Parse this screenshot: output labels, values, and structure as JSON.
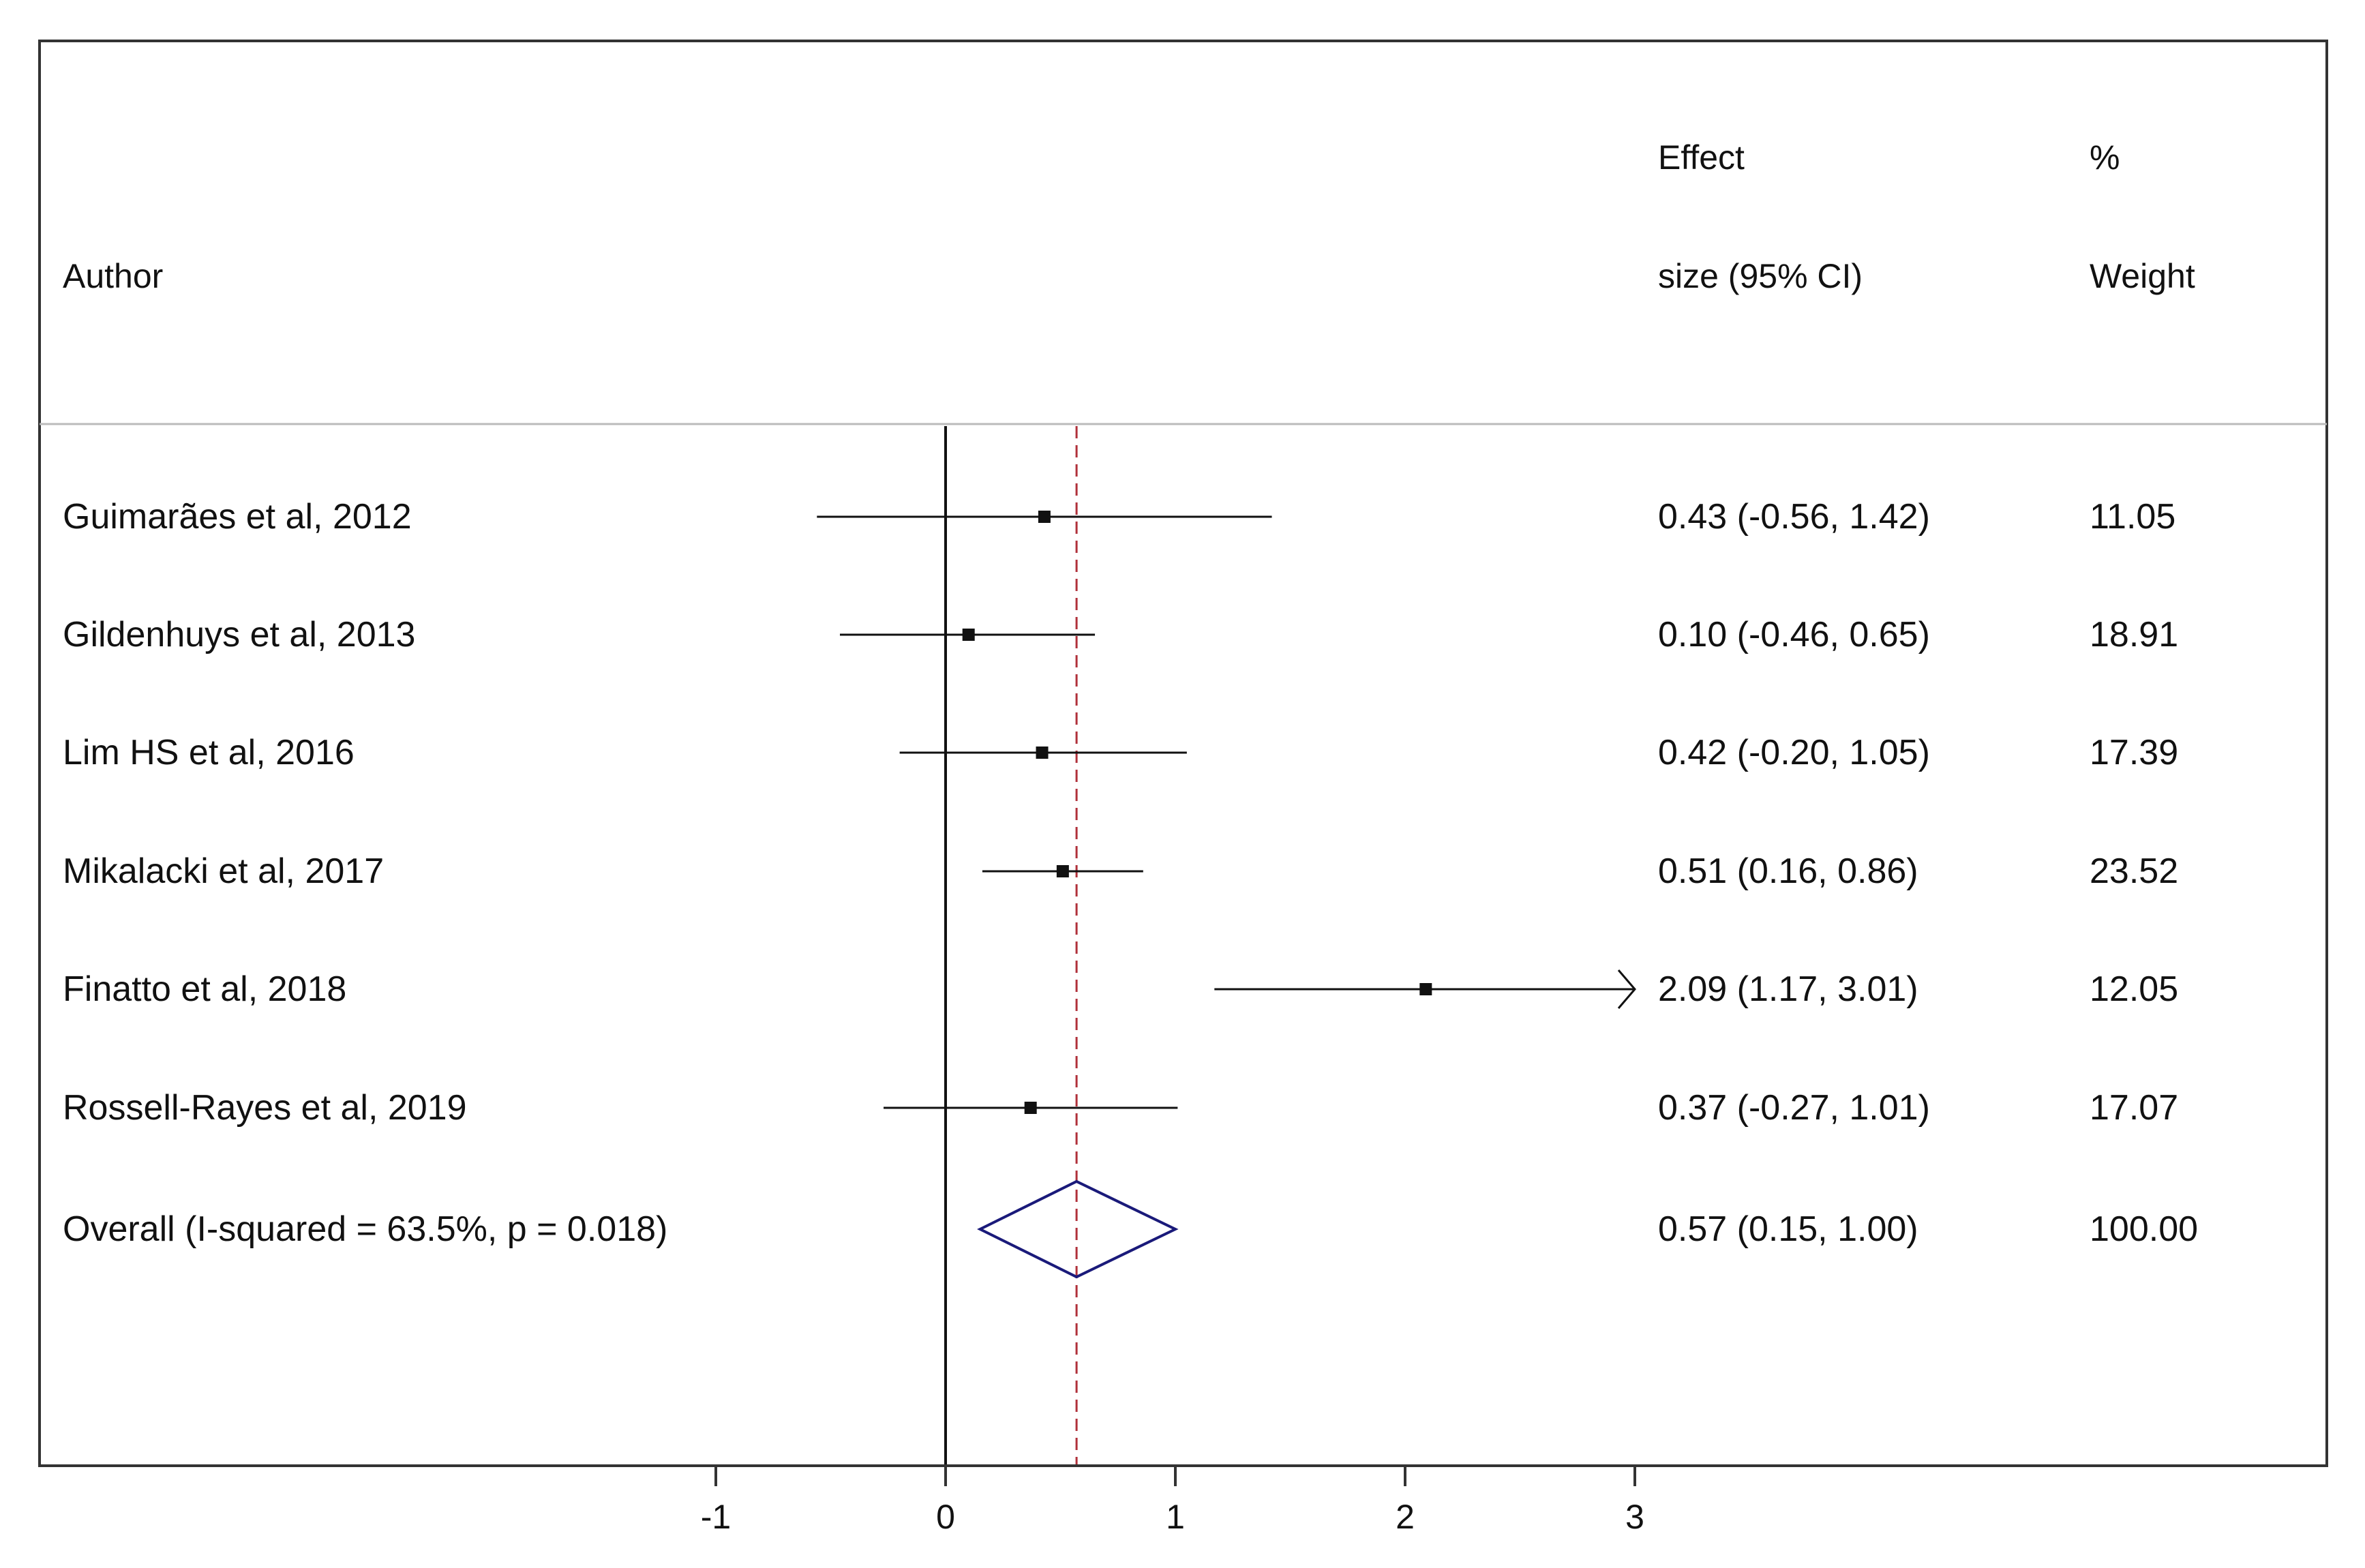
{
  "chart_data": {
    "type": "forest",
    "headers": {
      "author": "Author",
      "effect_line1": "Effect",
      "effect_line2": "size (95% CI)",
      "weight_line1": "%",
      "weight_line2": "Weight"
    },
    "studies": [
      {
        "author": "Guimarães et al, 2012",
        "effect": 0.43,
        "lower": -0.56,
        "upper": 1.42,
        "effect_text": "0.43 (-0.56, 1.42)",
        "weight": "11.05",
        "arrow": false
      },
      {
        "author": "Gildenhuys et al, 2013",
        "effect": 0.1,
        "lower": -0.46,
        "upper": 0.65,
        "effect_text": "0.10 (-0.46, 0.65)",
        "weight": "18.91",
        "arrow": false
      },
      {
        "author": "Lim HS et al, 2016",
        "effect": 0.42,
        "lower": -0.2,
        "upper": 1.05,
        "effect_text": "0.42 (-0.20, 1.05)",
        "weight": "17.39",
        "arrow": false
      },
      {
        "author": "Mikalacki et al, 2017",
        "effect": 0.51,
        "lower": 0.16,
        "upper": 0.86,
        "effect_text": "0.51 (0.16, 0.86)",
        "weight": "23.52",
        "arrow": false
      },
      {
        "author": "Finatto et al, 2018",
        "effect": 2.09,
        "lower": 1.17,
        "upper": 3.01,
        "effect_text": "2.09 (1.17, 3.01)",
        "weight": "12.05",
        "arrow": true
      },
      {
        "author": "Rossell-Rayes et al, 2019",
        "effect": 0.37,
        "lower": -0.27,
        "upper": 1.01,
        "effect_text": "0.37 (-0.27, 1.01)",
        "weight": "17.07",
        "arrow": false
      }
    ],
    "overall": {
      "label": "Overall  (I-squared = 63.5%, p = 0.018)",
      "effect": 0.57,
      "lower": 0.15,
      "upper": 1.0,
      "effect_text": "0.57 (0.15, 1.00)",
      "weight": "100.00"
    },
    "x_ticks": [
      -1,
      0,
      1,
      2,
      3
    ],
    "x_tick_labels": [
      "-1",
      "0",
      "1",
      "2",
      "3"
    ],
    "xlim": [
      -1,
      3
    ],
    "null_line": 0,
    "colors": {
      "diamond": "#1a1a7a",
      "overall_line": "#b0303a",
      "lines": "#111111"
    }
  }
}
